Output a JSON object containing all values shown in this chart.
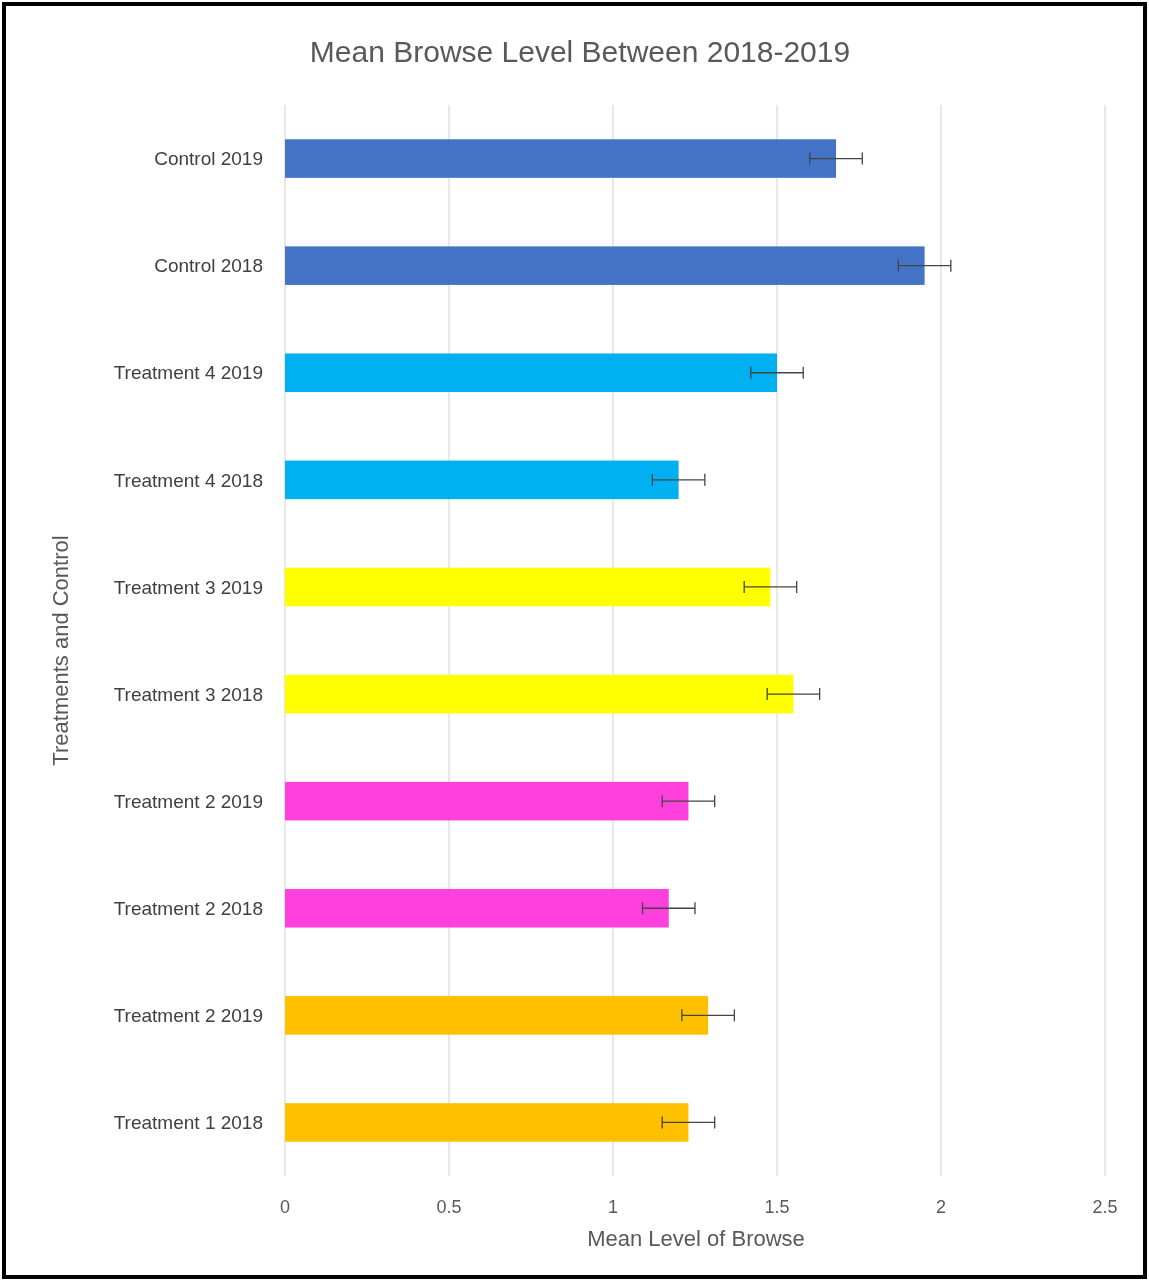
{
  "chart_data": {
    "type": "bar",
    "orientation": "horizontal",
    "title": "Mean Browse Level Between 2018-2019",
    "xlabel": "Mean Level of Browse",
    "ylabel": "Treatments and Control",
    "categories": [
      "Control 2019",
      "Control 2018",
      "Treatment 4 2019",
      "Treatment 4 2018",
      "Treatment 3 2019",
      "Treatment 3 2018",
      "Treatment 2 2019",
      "Treatment 2 2018",
      "Treatment 2 2019",
      "Treatment 1 2018"
    ],
    "values": [
      1.68,
      1.95,
      1.5,
      1.2,
      1.48,
      1.55,
      1.23,
      1.17,
      1.29,
      1.23
    ],
    "errors": [
      0.08,
      0.08,
      0.08,
      0.08,
      0.08,
      0.08,
      0.08,
      0.08,
      0.08,
      0.08
    ],
    "colors": [
      "#4472c4",
      "#4472c4",
      "#00b0f0",
      "#00b0f0",
      "#ffff00",
      "#ffff00",
      "#ff40dd",
      "#ff40dd",
      "#ffc000",
      "#ffc000"
    ],
    "xlim": [
      0,
      2.5
    ],
    "xticks": [
      0,
      0.5,
      1,
      1.5,
      2,
      2.5
    ],
    "grid": "x"
  }
}
